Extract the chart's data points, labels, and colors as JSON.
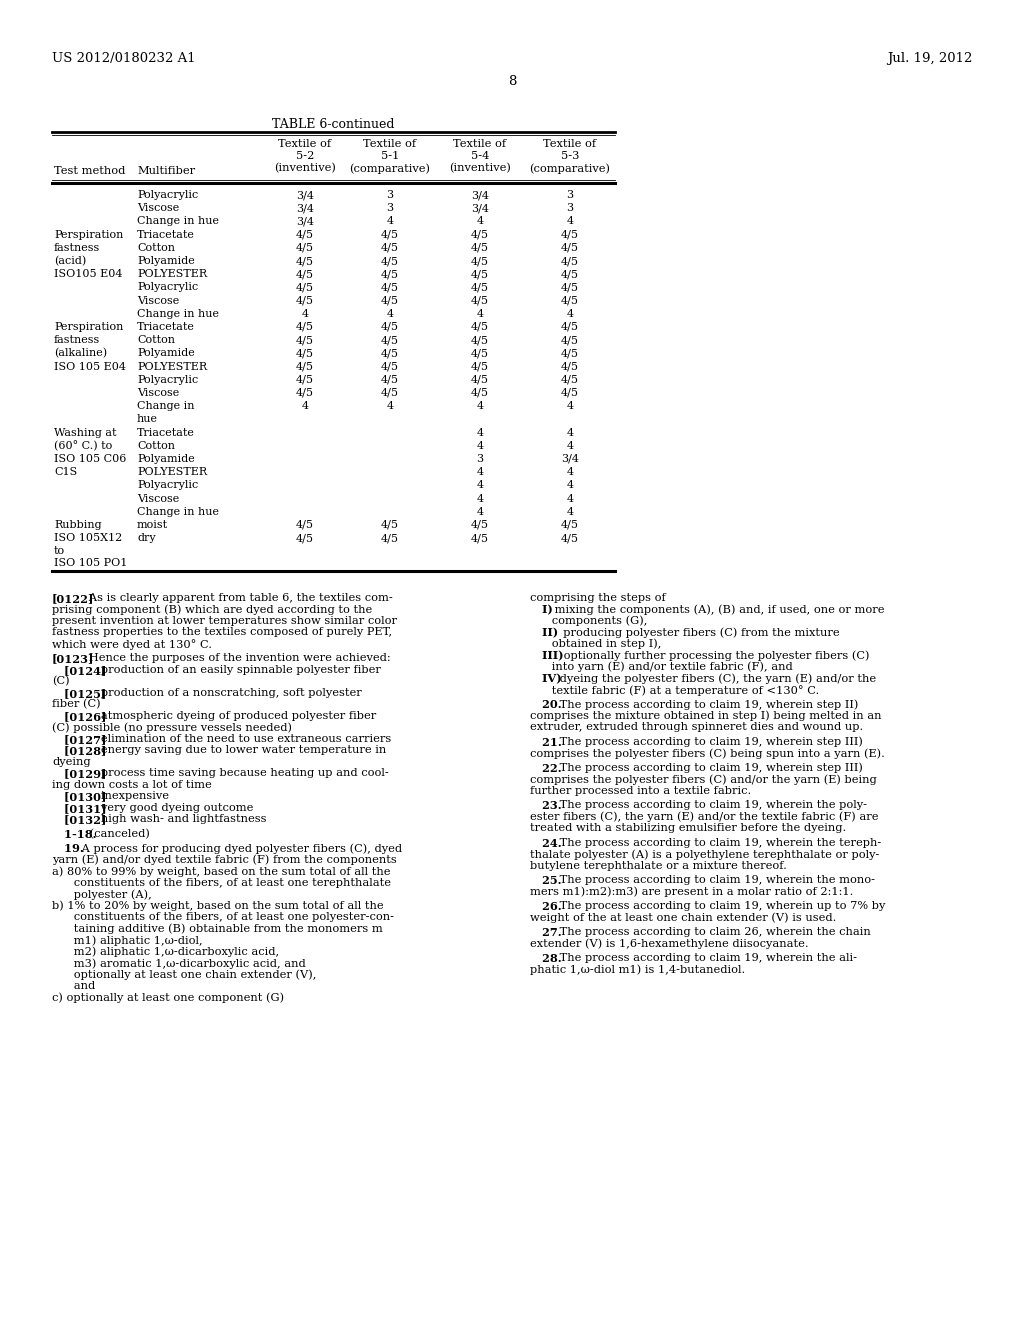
{
  "header_left": "US 2012/0180232 A1",
  "header_right": "Jul. 19, 2012",
  "page_number": "8",
  "table_title": "TABLE 6-continued",
  "table_rows": [
    [
      "",
      "Polyacrylic",
      "3/4",
      "3",
      "3/4",
      "3"
    ],
    [
      "",
      "Viscose",
      "3/4",
      "3",
      "3/4",
      "3"
    ],
    [
      "",
      "Change in hue",
      "3/4",
      "4",
      "4",
      "4"
    ],
    [
      "Perspiration",
      "Triacetate",
      "4/5",
      "4/5",
      "4/5",
      "4/5"
    ],
    [
      "fastness",
      "Cotton",
      "4/5",
      "4/5",
      "4/5",
      "4/5"
    ],
    [
      "(acid)",
      "Polyamide",
      "4/5",
      "4/5",
      "4/5",
      "4/5"
    ],
    [
      "ISO105 E04",
      "POLYESTER",
      "4/5",
      "4/5",
      "4/5",
      "4/5"
    ],
    [
      "",
      "Polyacrylic",
      "4/5",
      "4/5",
      "4/5",
      "4/5"
    ],
    [
      "",
      "Viscose",
      "4/5",
      "4/5",
      "4/5",
      "4/5"
    ],
    [
      "",
      "Change in hue",
      "4",
      "4",
      "4",
      "4"
    ],
    [
      "Perspiration",
      "Triacetate",
      "4/5",
      "4/5",
      "4/5",
      "4/5"
    ],
    [
      "fastness",
      "Cotton",
      "4/5",
      "4/5",
      "4/5",
      "4/5"
    ],
    [
      "(alkaline)",
      "Polyamide",
      "4/5",
      "4/5",
      "4/5",
      "4/5"
    ],
    [
      "ISO 105 E04",
      "POLYESTER",
      "4/5",
      "4/5",
      "4/5",
      "4/5"
    ],
    [
      "",
      "Polyacrylic",
      "4/5",
      "4/5",
      "4/5",
      "4/5"
    ],
    [
      "",
      "Viscose",
      "4/5",
      "4/5",
      "4/5",
      "4/5"
    ],
    [
      "",
      "Change in",
      "4",
      "4",
      "4",
      "4"
    ],
    [
      "",
      "hue",
      "",
      "",
      "",
      ""
    ],
    [
      "Washing at",
      "Triacetate",
      "",
      "",
      "4",
      "4"
    ],
    [
      "(60° C.) to",
      "Cotton",
      "",
      "",
      "4",
      "4"
    ],
    [
      "ISO 105 C06",
      "Polyamide",
      "",
      "",
      "3",
      "3/4"
    ],
    [
      "C1S",
      "POLYESTER",
      "",
      "",
      "4",
      "4"
    ],
    [
      "",
      "Polyacrylic",
      "",
      "",
      "4",
      "4"
    ],
    [
      "",
      "Viscose",
      "",
      "",
      "4",
      "4"
    ],
    [
      "",
      "Change in hue",
      "",
      "",
      "4",
      "4"
    ],
    [
      "Rubbing",
      "moist",
      "4/5",
      "4/5",
      "4/5",
      "4/5"
    ],
    [
      "ISO 105X12",
      "dry",
      "4/5",
      "4/5",
      "4/5",
      "4/5"
    ],
    [
      "to",
      "",
      "",
      "",
      "",
      ""
    ],
    [
      "ISO 105 PO1",
      "",
      "",
      "",
      "",
      ""
    ]
  ],
  "left_paragraphs": [
    {
      "bold_prefix": "[0122]",
      "text": "   As is clearly apparent from table 6, the textiles com-\nprising component (B) which are dyed according to the\npresent invention at lower temperatures show similar color\nfastness properties to the textiles composed of purely PET,\nwhich were dyed at 130° C.",
      "extra_space": true
    },
    {
      "bold_prefix": "[0123]",
      "text": "   Hence the purposes of the invention were achieved:",
      "extra_space": false
    },
    {
      "bold_prefix": "   [0124]",
      "text": "   production of an easily spinnable polyester fiber\n(C)",
      "extra_space": false
    },
    {
      "bold_prefix": "   [0125]",
      "text": "   production of a nonscratching, soft polyester\nfiber (C)",
      "extra_space": false
    },
    {
      "bold_prefix": "   [0126]",
      "text": "   atmospheric dyeing of produced polyester fiber\n(C) possible (no pressure vessels needed)",
      "extra_space": false
    },
    {
      "bold_prefix": "   [0127]",
      "text": "   elimination of the need to use extraneous carriers",
      "extra_space": false
    },
    {
      "bold_prefix": "   [0128]",
      "text": "   energy saving due to lower water temperature in\ndyeing",
      "extra_space": false
    },
    {
      "bold_prefix": "   [0129]",
      "text": "   process time saving because heating up and cool-\ning down costs a lot of time",
      "extra_space": false
    },
    {
      "bold_prefix": "   [0130]",
      "text": "   inexpensive",
      "extra_space": false
    },
    {
      "bold_prefix": "   [0131]",
      "text": "   very good dyeing outcome",
      "extra_space": false
    },
    {
      "bold_prefix": "   [0132]",
      "text": "   high wash- and lightfastness",
      "extra_space": true
    },
    {
      "bold_prefix": "   1-18.",
      "text": " (canceled)",
      "extra_space": true
    },
    {
      "bold_prefix": "   19.",
      "text": " A process for producing dyed polyester fibers (C), dyed\nyarn (E) and/or dyed textile fabric (F) from the components\na) 80% to 99% by weight, based on the sum total of all the\n      constituents of the fibers, of at least one terephthalate\n      polyester (A),\nb) 1% to 20% by weight, based on the sum total of all the\n      constituents of the fibers, of at least one polyester-con-\n      taining additive (B) obtainable from the monomers m\n      m1) aliphatic 1,ω-diol,\n      m2) aliphatic 1,ω-dicarboxylic acid,\n      m3) aromatic 1,ω-dicarboxylic acid, and\n      optionally at least one chain extender (V),\n      and\nc) optionally at least one component (G)",
      "extra_space": false
    }
  ],
  "right_paragraphs": [
    {
      "bold_prefix": "",
      "text": "comprising the steps of",
      "extra_space": false
    },
    {
      "bold_prefix": "   I)",
      "text": " mixing the components (A), (B) and, if used, one or more\n      components (G),",
      "extra_space": false
    },
    {
      "bold_prefix": "   II)",
      "text": "  producing polyester fibers (C) from the mixture\n      obtained in step I),",
      "extra_space": false
    },
    {
      "bold_prefix": "   III)",
      "text": " optionally further processing the polyester fibers (C)\n      into yarn (E) and/or textile fabric (F), and",
      "extra_space": false
    },
    {
      "bold_prefix": "   IV)",
      "text": " dyeing the polyester fibers (C), the yarn (E) and/or the\n      textile fabric (F) at a temperature of <130° C.",
      "extra_space": true
    },
    {
      "bold_prefix": "   20.",
      "text": " The process according to claim 19, wherein step II)\ncomprises the mixture obtained in step I) being melted in an\nextruder, extruded through spinneret dies and wound up.",
      "extra_space": true
    },
    {
      "bold_prefix": "   21.",
      "text": " The process according to claim 19, wherein step III)\ncomprises the polyester fibers (C) being spun into a yarn (E).",
      "extra_space": true
    },
    {
      "bold_prefix": "   22.",
      "text": " The process according to claim 19, wherein step III)\ncomprises the polyester fibers (C) and/or the yarn (E) being\nfurther processed into a textile fabric.",
      "extra_space": true
    },
    {
      "bold_prefix": "   23.",
      "text": " The process according to claim 19, wherein the poly-\nester fibers (C), the yarn (E) and/or the textile fabric (F) are\ntreated with a stabilizing emulsifier before the dyeing.",
      "extra_space": true
    },
    {
      "bold_prefix": "   24.",
      "text": " The process according to claim 19, wherein the tereph-\nthalate polyester (A) is a polyethylene terephthalate or poly-\nbutylene terephthalate or a mixture thereof.",
      "extra_space": true
    },
    {
      "bold_prefix": "   25.",
      "text": " The process according to claim 19, wherein the mono-\nmers m1):m2):m3) are present in a molar ratio of 2:1:1.",
      "extra_space": true
    },
    {
      "bold_prefix": "   26.",
      "text": " The process according to claim 19, wherein up to 7% by\nweight of the at least one chain extender (V) is used.",
      "extra_space": true
    },
    {
      "bold_prefix": "   27.",
      "text": " The process according to claim 26, wherein the chain\nextender (V) is 1,6-hexamethylene diisocyanate.",
      "extra_space": true
    },
    {
      "bold_prefix": "   28.",
      "text": " The process according to claim 19, wherein the ali-\nphatic 1,ω-diol m1) is 1,4-butanediol.",
      "extra_space": false
    }
  ]
}
